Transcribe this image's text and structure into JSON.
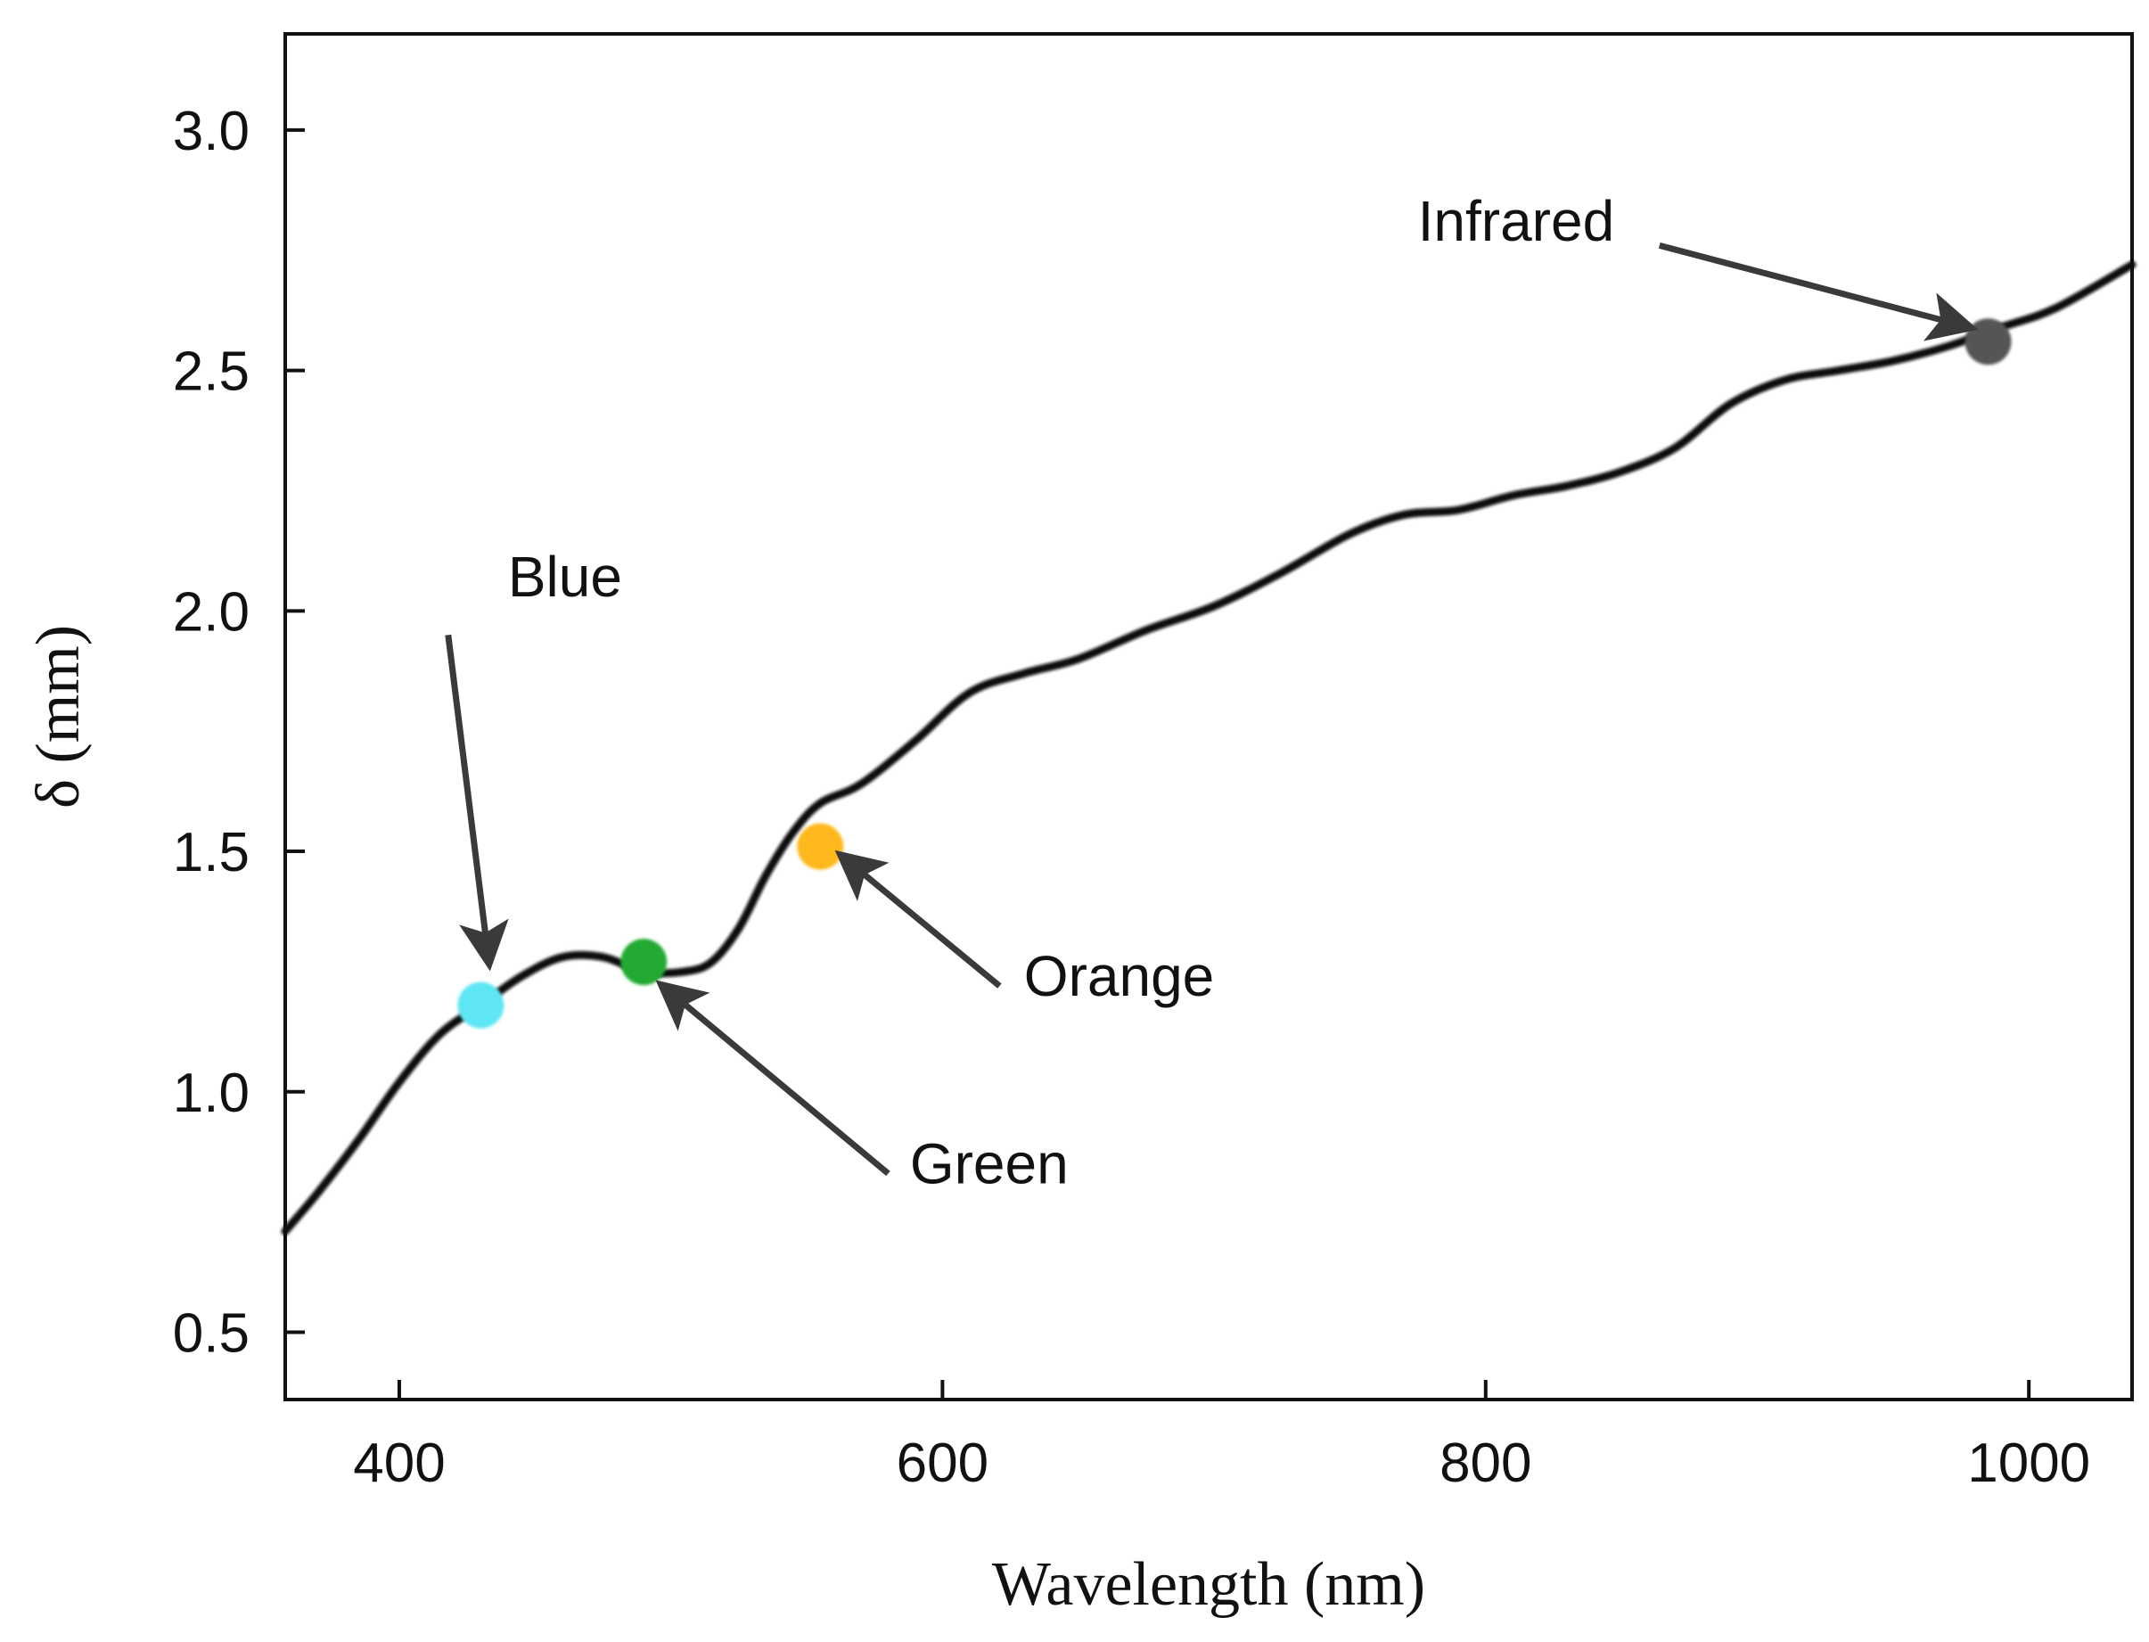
{
  "chart_data": {
    "type": "line",
    "title": "",
    "xlabel": "Wavelength (nm)",
    "ylabel": "δ (mm)",
    "xlim": [
      358,
      1038
    ],
    "ylim": [
      0.36,
      3.2
    ],
    "grid": false,
    "legend": "none",
    "x_ticks": [
      400,
      600,
      800,
      1000
    ],
    "x_tick_labels": [
      "400",
      "600",
      "800",
      "1000"
    ],
    "y_ticks": [
      0.5,
      1.0,
      1.5,
      2.0,
      2.5,
      3.0
    ],
    "y_tick_labels": [
      "0.5",
      "1.0",
      "1.5",
      "2.0",
      "2.5",
      "3.0"
    ],
    "series": [
      {
        "name": "δ",
        "color": "#111111",
        "x": [
          358,
          370,
          385,
          400,
          415,
          430,
          445,
          460,
          475,
          490,
          505,
          515,
          525,
          535,
          545,
          555,
          570,
          590,
          610,
          630,
          650,
          675,
          700,
          725,
          750,
          770,
          790,
          810,
          830,
          850,
          870,
          890,
          910,
          930,
          950,
          970,
          990,
          1010,
          1038
        ],
        "y": [
          0.71,
          0.79,
          0.9,
          1.02,
          1.12,
          1.18,
          1.24,
          1.28,
          1.28,
          1.25,
          1.25,
          1.27,
          1.34,
          1.45,
          1.54,
          1.6,
          1.64,
          1.73,
          1.83,
          1.87,
          1.9,
          1.96,
          2.01,
          2.08,
          2.16,
          2.2,
          2.21,
          2.24,
          2.26,
          2.29,
          2.34,
          2.43,
          2.48,
          2.5,
          2.52,
          2.55,
          2.59,
          2.63,
          2.72
        ]
      }
    ],
    "markers": [
      {
        "name": "Blue",
        "x": 430,
        "y": 1.18,
        "color": "#5ee6f5"
      },
      {
        "name": "Green",
        "x": 490,
        "y": 1.27,
        "color": "#22aa33"
      },
      {
        "name": "Orange",
        "x": 555,
        "y": 1.51,
        "color": "#ffb81c"
      },
      {
        "name": "Infrared",
        "x": 985,
        "y": 2.56,
        "color": "#555555"
      }
    ],
    "annotations": [
      {
        "text": "Blue",
        "label_x": 440,
        "label_y": 2.03,
        "arrow_from": [
          418,
          1.95
        ],
        "arrow_to": [
          433,
          1.27
        ]
      },
      {
        "text": "Green",
        "label_x": 588,
        "label_y": 0.81,
        "arrow_from": [
          580,
          0.83
        ],
        "arrow_to": [
          497,
          1.22
        ]
      },
      {
        "text": "Orange",
        "label_x": 630,
        "label_y": 1.2,
        "arrow_from": [
          621,
          1.22
        ],
        "arrow_to": [
          563,
          1.49
        ]
      },
      {
        "text": "Infrared",
        "label_x": 775,
        "label_y": 2.77,
        "arrow_from": [
          864,
          2.76
        ],
        "arrow_to": [
          978,
          2.59
        ]
      }
    ]
  }
}
